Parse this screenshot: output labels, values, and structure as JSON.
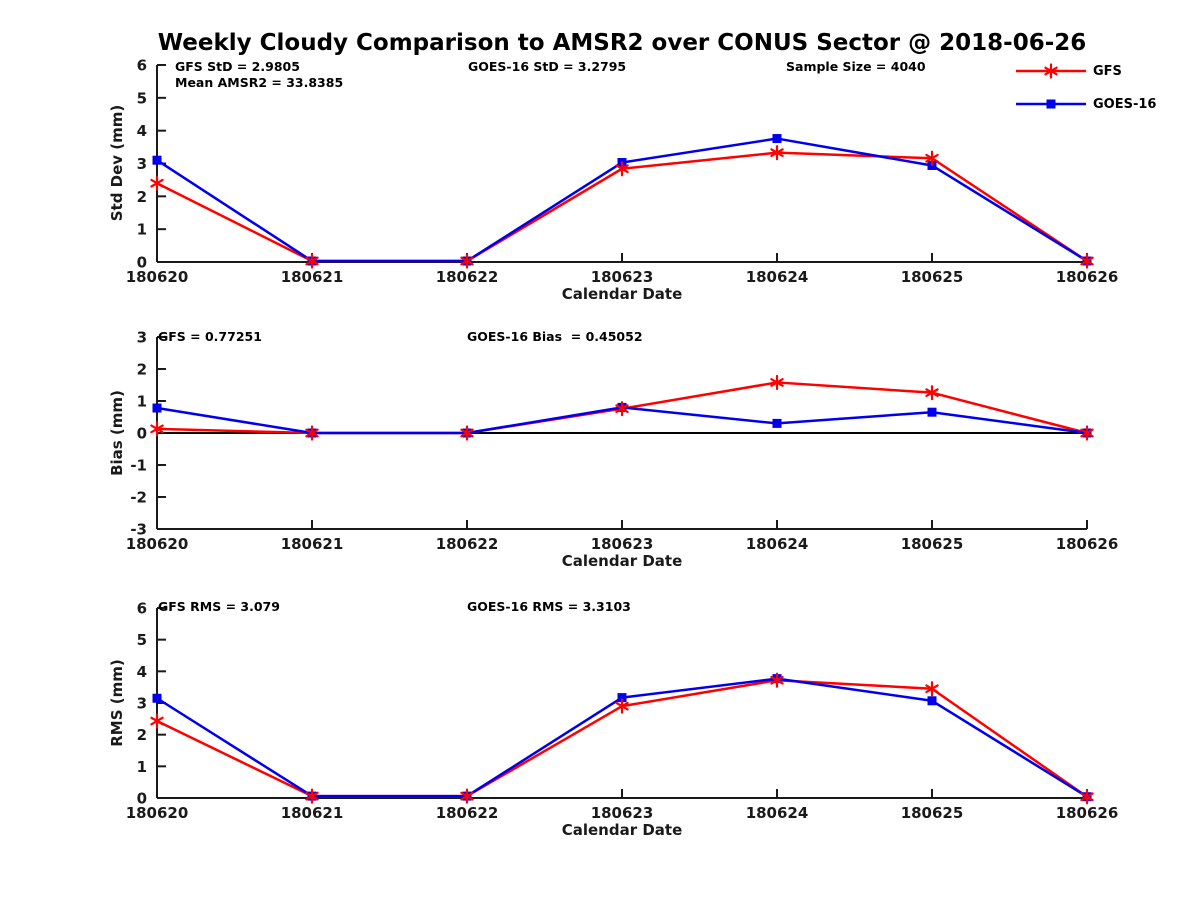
{
  "figure": {
    "title": "Weekly Cloudy Comparison to AMSR2 over CONUS Sector @ 2018-06-26"
  },
  "colors": {
    "gfs": "#ff0000",
    "goes16": "#0000ee",
    "axis": "#1a1a1a",
    "zero_line": "#000000",
    "background": "#ffffff"
  },
  "legend": {
    "entries": [
      {
        "label": "GFS",
        "color_key": "gfs",
        "marker": "asterisk"
      },
      {
        "label": "GOES-16",
        "color_key": "goes16",
        "marker": "square"
      }
    ]
  },
  "chart_data": [
    {
      "id": "std-dev",
      "type": "line",
      "ylabel": "Std Dev (mm)",
      "xlabel": "Calendar Date",
      "ylim": [
        0,
        6
      ],
      "yticks": [
        0,
        1,
        2,
        3,
        4,
        5,
        6
      ],
      "zero_line": false,
      "grid": false,
      "categories": [
        "180620",
        "180621",
        "180622",
        "180623",
        "180624",
        "180625",
        "180626"
      ],
      "annotations": [
        "GFS StD = 2.9805",
        "GOES-16 StD = 3.2795",
        "Sample Size = 4040",
        "Mean AMSR2 = 33.8385"
      ],
      "series": [
        {
          "name": "GFS",
          "color_key": "gfs",
          "marker": "asterisk",
          "values": [
            2.4,
            0.03,
            0.03,
            2.84,
            3.33,
            3.16,
            0.03
          ]
        },
        {
          "name": "GOES-16",
          "color_key": "goes16",
          "marker": "square",
          "values": [
            3.1,
            0.03,
            0.03,
            3.03,
            3.76,
            2.94,
            0.03
          ]
        }
      ]
    },
    {
      "id": "bias",
      "type": "line",
      "ylabel": "Bias (mm)",
      "xlabel": "Calendar Date",
      "ylim": [
        -3,
        3
      ],
      "yticks": [
        -3,
        -2,
        -1,
        0,
        1,
        2,
        3
      ],
      "zero_line": true,
      "grid": false,
      "categories": [
        "180620",
        "180621",
        "180622",
        "180623",
        "180624",
        "180625",
        "180626"
      ],
      "annotations": [
        "GFS = 0.77251",
        "GOES-16 Bias  = 0.45052"
      ],
      "series": [
        {
          "name": "GFS",
          "color_key": "gfs",
          "marker": "asterisk",
          "values": [
            0.13,
            0.0,
            0.0,
            0.76,
            1.58,
            1.26,
            0.0
          ]
        },
        {
          "name": "GOES-16",
          "color_key": "goes16",
          "marker": "square",
          "values": [
            0.78,
            0.0,
            0.0,
            0.8,
            0.3,
            0.65,
            0.0
          ]
        }
      ]
    },
    {
      "id": "rms",
      "type": "line",
      "ylabel": "RMS (mm)",
      "xlabel": "Calendar Date",
      "ylim": [
        0,
        6
      ],
      "yticks": [
        0,
        1,
        2,
        3,
        4,
        5,
        6
      ],
      "zero_line": false,
      "grid": false,
      "categories": [
        "180620",
        "180621",
        "180622",
        "180623",
        "180624",
        "180625",
        "180626"
      ],
      "annotations": [
        "GFS RMS = 3.079",
        "GOES-16 RMS = 3.3103"
      ],
      "series": [
        {
          "name": "GFS",
          "color_key": "gfs",
          "marker": "asterisk",
          "values": [
            2.43,
            0.06,
            0.06,
            2.9,
            3.72,
            3.45,
            0.04
          ]
        },
        {
          "name": "GOES-16",
          "color_key": "goes16",
          "marker": "square",
          "values": [
            3.15,
            0.06,
            0.06,
            3.17,
            3.77,
            3.07,
            0.04
          ]
        }
      ]
    }
  ]
}
